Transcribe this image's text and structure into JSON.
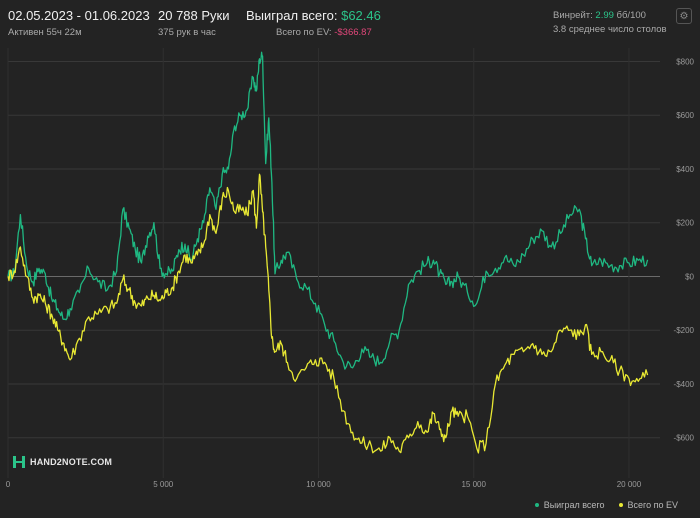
{
  "header": {
    "date_range": "02.05.2023 - 01.06.2023",
    "active_time": "Активен 55ч 22м",
    "hands": "20 788 Руки",
    "hands_per_hour": "375 рук в час",
    "won_label": "Выиграл всего:",
    "won_value": "$62.46",
    "ev_label": "Всего по EV:",
    "ev_value": "-$366.87",
    "winrate_label": "Винрейт:",
    "winrate_value": "2.99",
    "winrate_unit": "бб/100",
    "tables_avg": "3.8 среднее число столов"
  },
  "logo": {
    "text": "HAND2NOTE.COM"
  },
  "colors": {
    "won": "#1fb882",
    "ev": "#e8e833",
    "background": "#232323",
    "grid": "#3a3a3a"
  },
  "chart_data": {
    "type": "line",
    "xlabel": "",
    "ylabel": "",
    "xlim": [
      0,
      21000
    ],
    "ylim": [
      -750,
      850
    ],
    "x_ticks": [
      0,
      5000,
      10000,
      15000,
      20000
    ],
    "x_tick_labels": [
      "0",
      "5 000",
      "10 000",
      "15 000",
      "20 000"
    ],
    "y_ticks": [
      800,
      600,
      400,
      200,
      0,
      -200,
      -400,
      -600
    ],
    "y_tick_labels": [
      "$800",
      "$600",
      "$400",
      "$200",
      "$0",
      "-$200",
      "-$400",
      "-$600"
    ],
    "grid": true,
    "legend_position": "bottom-right",
    "series": [
      {
        "name": "Выиграл всего",
        "color": "#1fb882",
        "x": [
          0,
          200,
          400,
          600,
          800,
          1000,
          1200,
          1400,
          1600,
          1800,
          2000,
          2300,
          2600,
          2900,
          3200,
          3500,
          3700,
          3900,
          4100,
          4300,
          4500,
          4700,
          4900,
          5100,
          5300,
          5500,
          5700,
          5900,
          6100,
          6300,
          6500,
          6700,
          6900,
          7100,
          7300,
          7500,
          7700,
          7900,
          8000,
          8100,
          8200,
          8300,
          8400,
          8500,
          8600,
          8800,
          9000,
          9300,
          9600,
          9900,
          10200,
          10500,
          10800,
          11100,
          11400,
          11700,
          12000,
          12300,
          12600,
          12900,
          13200,
          13500,
          13700,
          13900,
          14100,
          14300,
          14500,
          14800,
          15100,
          15400,
          15700,
          16000,
          16300,
          16600,
          16900,
          17200,
          17500,
          17800,
          18100,
          18400,
          18600,
          18800,
          19100,
          19400,
          19700,
          20000,
          20300,
          20600
        ],
        "y": [
          0,
          10,
          230,
          40,
          -20,
          30,
          10,
          -80,
          -120,
          -160,
          -120,
          -60,
          30,
          -20,
          -50,
          20,
          250,
          180,
          100,
          50,
          150,
          200,
          30,
          10,
          20,
          100,
          120,
          60,
          140,
          200,
          330,
          250,
          380,
          400,
          560,
          600,
          620,
          740,
          690,
          810,
          820,
          420,
          590,
          350,
          10,
          60,
          90,
          -10,
          -40,
          -100,
          -180,
          -240,
          -320,
          -340,
          -270,
          -300,
          -320,
          -240,
          -200,
          -30,
          20,
          50,
          60,
          10,
          -30,
          -20,
          0,
          -60,
          -100,
          20,
          30,
          70,
          40,
          80,
          140,
          170,
          110,
          160,
          230,
          250,
          140,
          40,
          60,
          40,
          40,
          50,
          60,
          62
        ]
      },
      {
        "name": "Всего по EV",
        "color": "#e8e833",
        "x": [
          0,
          200,
          400,
          600,
          800,
          1000,
          1200,
          1400,
          1600,
          1800,
          2000,
          2300,
          2600,
          2900,
          3200,
          3500,
          3700,
          3900,
          4100,
          4300,
          4500,
          4700,
          4900,
          5100,
          5300,
          5500,
          5700,
          5900,
          6100,
          6300,
          6500,
          6700,
          6900,
          7100,
          7300,
          7500,
          7700,
          7900,
          8000,
          8100,
          8200,
          8300,
          8400,
          8500,
          8600,
          8800,
          9000,
          9300,
          9600,
          9900,
          10200,
          10500,
          10800,
          11100,
          11400,
          11700,
          12000,
          12300,
          12600,
          12900,
          13200,
          13500,
          13700,
          13900,
          14100,
          14300,
          14500,
          14800,
          15100,
          15400,
          15700,
          16000,
          16300,
          16600,
          16900,
          17200,
          17500,
          17800,
          18100,
          18400,
          18600,
          18800,
          19100,
          19400,
          19700,
          20000,
          20300,
          20600
        ],
        "y": [
          0,
          20,
          110,
          0,
          -80,
          -70,
          -100,
          -140,
          -200,
          -250,
          -310,
          -230,
          -150,
          -140,
          -120,
          -100,
          -10,
          -50,
          -100,
          -110,
          -80,
          -70,
          -90,
          -60,
          -40,
          20,
          80,
          50,
          80,
          120,
          230,
          160,
          290,
          320,
          240,
          250,
          230,
          320,
          180,
          380,
          240,
          110,
          -50,
          -230,
          -280,
          -250,
          -320,
          -380,
          -340,
          -310,
          -320,
          -380,
          -500,
          -580,
          -620,
          -630,
          -650,
          -600,
          -650,
          -600,
          -540,
          -580,
          -510,
          -570,
          -600,
          -500,
          -520,
          -520,
          -640,
          -620,
          -400,
          -330,
          -290,
          -280,
          -250,
          -290,
          -280,
          -200,
          -200,
          -220,
          -180,
          -290,
          -280,
          -310,
          -350,
          -380,
          -390,
          -367
        ]
      }
    ]
  },
  "legend": {
    "won": "Выиграл всего",
    "ev": "Всего по EV"
  }
}
